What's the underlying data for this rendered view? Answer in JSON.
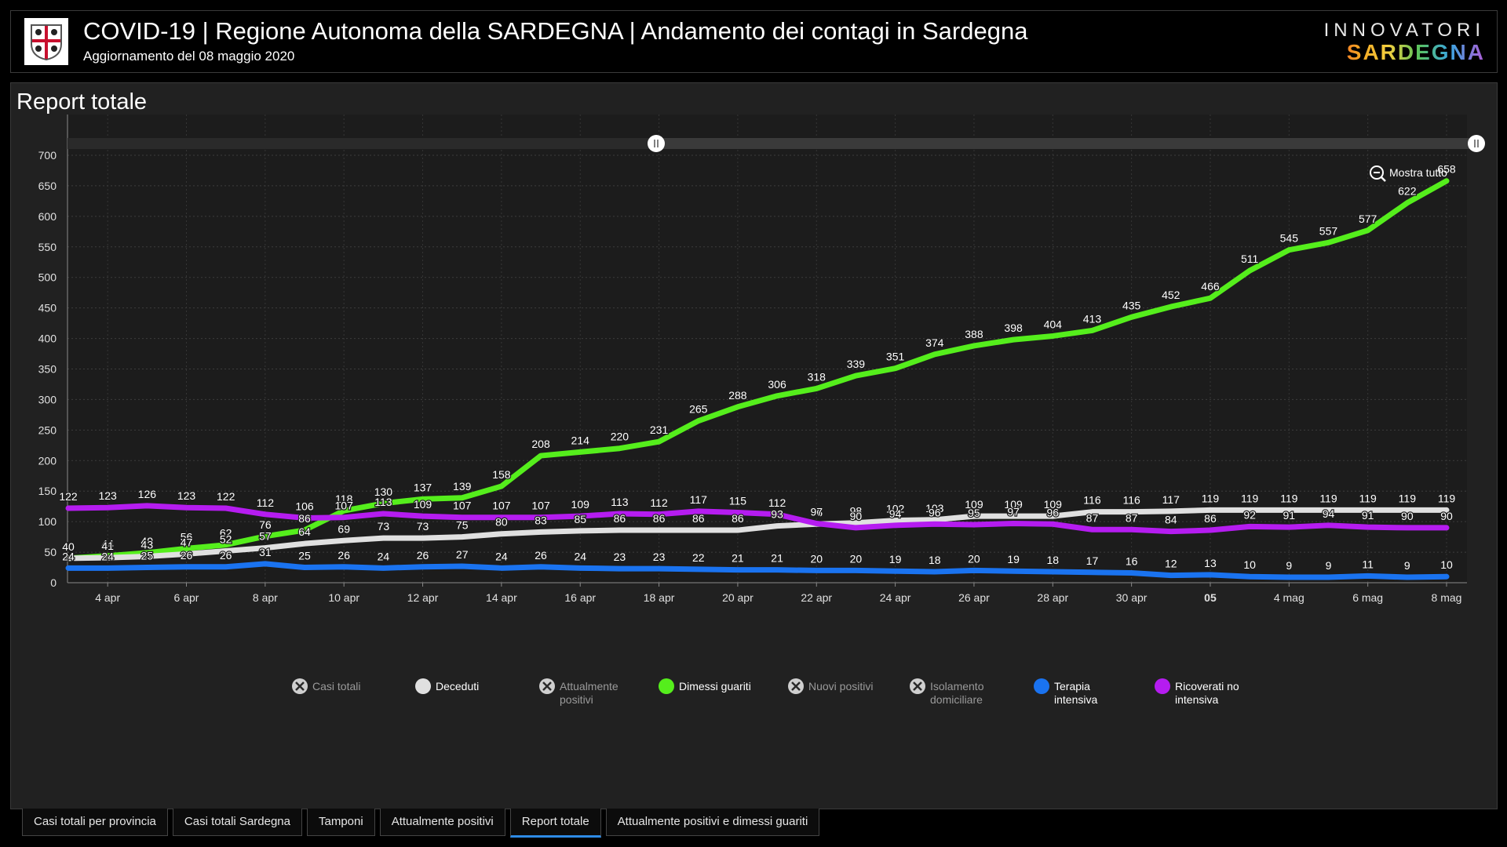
{
  "header": {
    "title": "COVID-19 | Regione Autonoma della SARDEGNA | Andamento dei contagi in Sardegna",
    "subtitle": "Aggiornamento del 08 maggio 2020",
    "brand_top": "INNOVATORI",
    "brand_bottom": "SARDEGNA"
  },
  "panel": {
    "title": "Report totale",
    "show_all_label": "Mostra tutto"
  },
  "tabs": [
    {
      "label": "Casi totali per provincia",
      "active": false
    },
    {
      "label": "Casi totali Sardegna",
      "active": false
    },
    {
      "label": "Tamponi",
      "active": false
    },
    {
      "label": "Attualmente positivi",
      "active": false
    },
    {
      "label": "Report totale",
      "active": true
    },
    {
      "label": "Attualmente positivi e dimessi guariti",
      "active": false
    }
  ],
  "colors": {
    "dimessi": "#55ee1c",
    "deceduti": "#e0e0e0",
    "terapia": "#1a73f0",
    "ricoverati": "#b51cf0"
  },
  "chart_data": {
    "type": "line",
    "title": "Report totale",
    "ylim": [
      0,
      700
    ],
    "yticks": [
      0,
      50,
      100,
      150,
      200,
      250,
      300,
      350,
      400,
      450,
      500,
      550,
      600,
      650,
      700
    ],
    "x_tick_labels": [
      {
        "i": 1,
        "label": "4 apr"
      },
      {
        "i": 3,
        "label": "6 apr"
      },
      {
        "i": 5,
        "label": "8 apr"
      },
      {
        "i": 7,
        "label": "10 apr"
      },
      {
        "i": 9,
        "label": "12 apr"
      },
      {
        "i": 11,
        "label": "14 apr"
      },
      {
        "i": 13,
        "label": "16 apr"
      },
      {
        "i": 15,
        "label": "18 apr"
      },
      {
        "i": 17,
        "label": "20 apr"
      },
      {
        "i": 19,
        "label": "22 apr"
      },
      {
        "i": 21,
        "label": "24 apr"
      },
      {
        "i": 23,
        "label": "26 apr"
      },
      {
        "i": 25,
        "label": "28 apr"
      },
      {
        "i": 27,
        "label": "30 apr"
      },
      {
        "i": 29,
        "label": "05",
        "bold": true
      },
      {
        "i": 31,
        "label": "4 mag"
      },
      {
        "i": 33,
        "label": "6 mag"
      },
      {
        "i": 35,
        "label": "8 mag"
      }
    ],
    "x": [
      "3 apr",
      "4 apr",
      "5 apr",
      "6 apr",
      "7 apr",
      "8 apr",
      "9 apr",
      "10 apr",
      "11 apr",
      "12 apr",
      "13 apr",
      "14 apr",
      "15 apr",
      "16 apr",
      "17 apr",
      "18 apr",
      "19 apr",
      "20 apr",
      "21 apr",
      "22 apr",
      "23 apr",
      "24 apr",
      "25 apr",
      "26 apr",
      "27 apr",
      "28 apr",
      "29 apr",
      "30 apr",
      "1 mag",
      "2 mag",
      "3 mag",
      "4 mag",
      "5 mag",
      "6 mag",
      "7 mag",
      "8 mag"
    ],
    "series": [
      {
        "name": "Dimessi guariti",
        "color_key": "dimessi",
        "visible": true,
        "values": [
          40,
          44,
          49,
          56,
          62,
          76,
          86,
          118,
          130,
          137,
          139,
          158,
          208,
          214,
          220,
          231,
          265,
          288,
          306,
          318,
          339,
          351,
          374,
          388,
          398,
          404,
          413,
          435,
          452,
          466,
          511,
          545,
          557,
          577,
          622,
          658
        ]
      },
      {
        "name": "Deceduti",
        "color_key": "deceduti",
        "visible": true,
        "values": [
          40,
          41,
          43,
          47,
          52,
          57,
          64,
          69,
          73,
          73,
          75,
          80,
          83,
          85,
          86,
          86,
          86,
          86,
          93,
          96,
          98,
          102,
          103,
          109,
          109,
          109,
          116,
          116,
          117,
          119,
          119,
          119,
          119,
          119,
          119,
          119
        ]
      },
      {
        "name": "Terapia intensiva",
        "color_key": "terapia",
        "visible": true,
        "values": [
          24,
          24,
          25,
          26,
          26,
          31,
          25,
          26,
          24,
          26,
          27,
          24,
          26,
          24,
          23,
          23,
          22,
          21,
          21,
          20,
          20,
          19,
          18,
          20,
          19,
          18,
          17,
          16,
          12,
          13,
          10,
          9,
          9,
          11,
          9,
          10
        ]
      },
      {
        "name": "Ricoverati no intensiva",
        "color_key": "ricoverati",
        "visible": true,
        "values": [
          122,
          123,
          126,
          123,
          122,
          112,
          106,
          107,
          113,
          109,
          107,
          107,
          107,
          109,
          113,
          112,
          117,
          115,
          112,
          97,
          90,
          94,
          96,
          95,
          97,
          96,
          87,
          87,
          84,
          86,
          92,
          91,
          94,
          91,
          90,
          90
        ]
      }
    ],
    "legend": {
      "placement": "bottom",
      "items": [
        {
          "label": "Casi totali",
          "state": "off"
        },
        {
          "label": "Deceduti",
          "state": "on",
          "color_key": "deceduti"
        },
        {
          "label": "Attualmente positivi",
          "state": "off"
        },
        {
          "label": "Dimessi guariti",
          "state": "on",
          "color_key": "dimessi"
        },
        {
          "label": "Nuovi positivi",
          "state": "off"
        },
        {
          "label": "Isolamento domiciliare",
          "state": "off"
        },
        {
          "label": "Terapia intensiva",
          "state": "on",
          "color_key": "terapia"
        },
        {
          "label": "Ricoverati no intensiva",
          "state": "on",
          "color_key": "ricoverati"
        }
      ]
    },
    "grid": true
  }
}
